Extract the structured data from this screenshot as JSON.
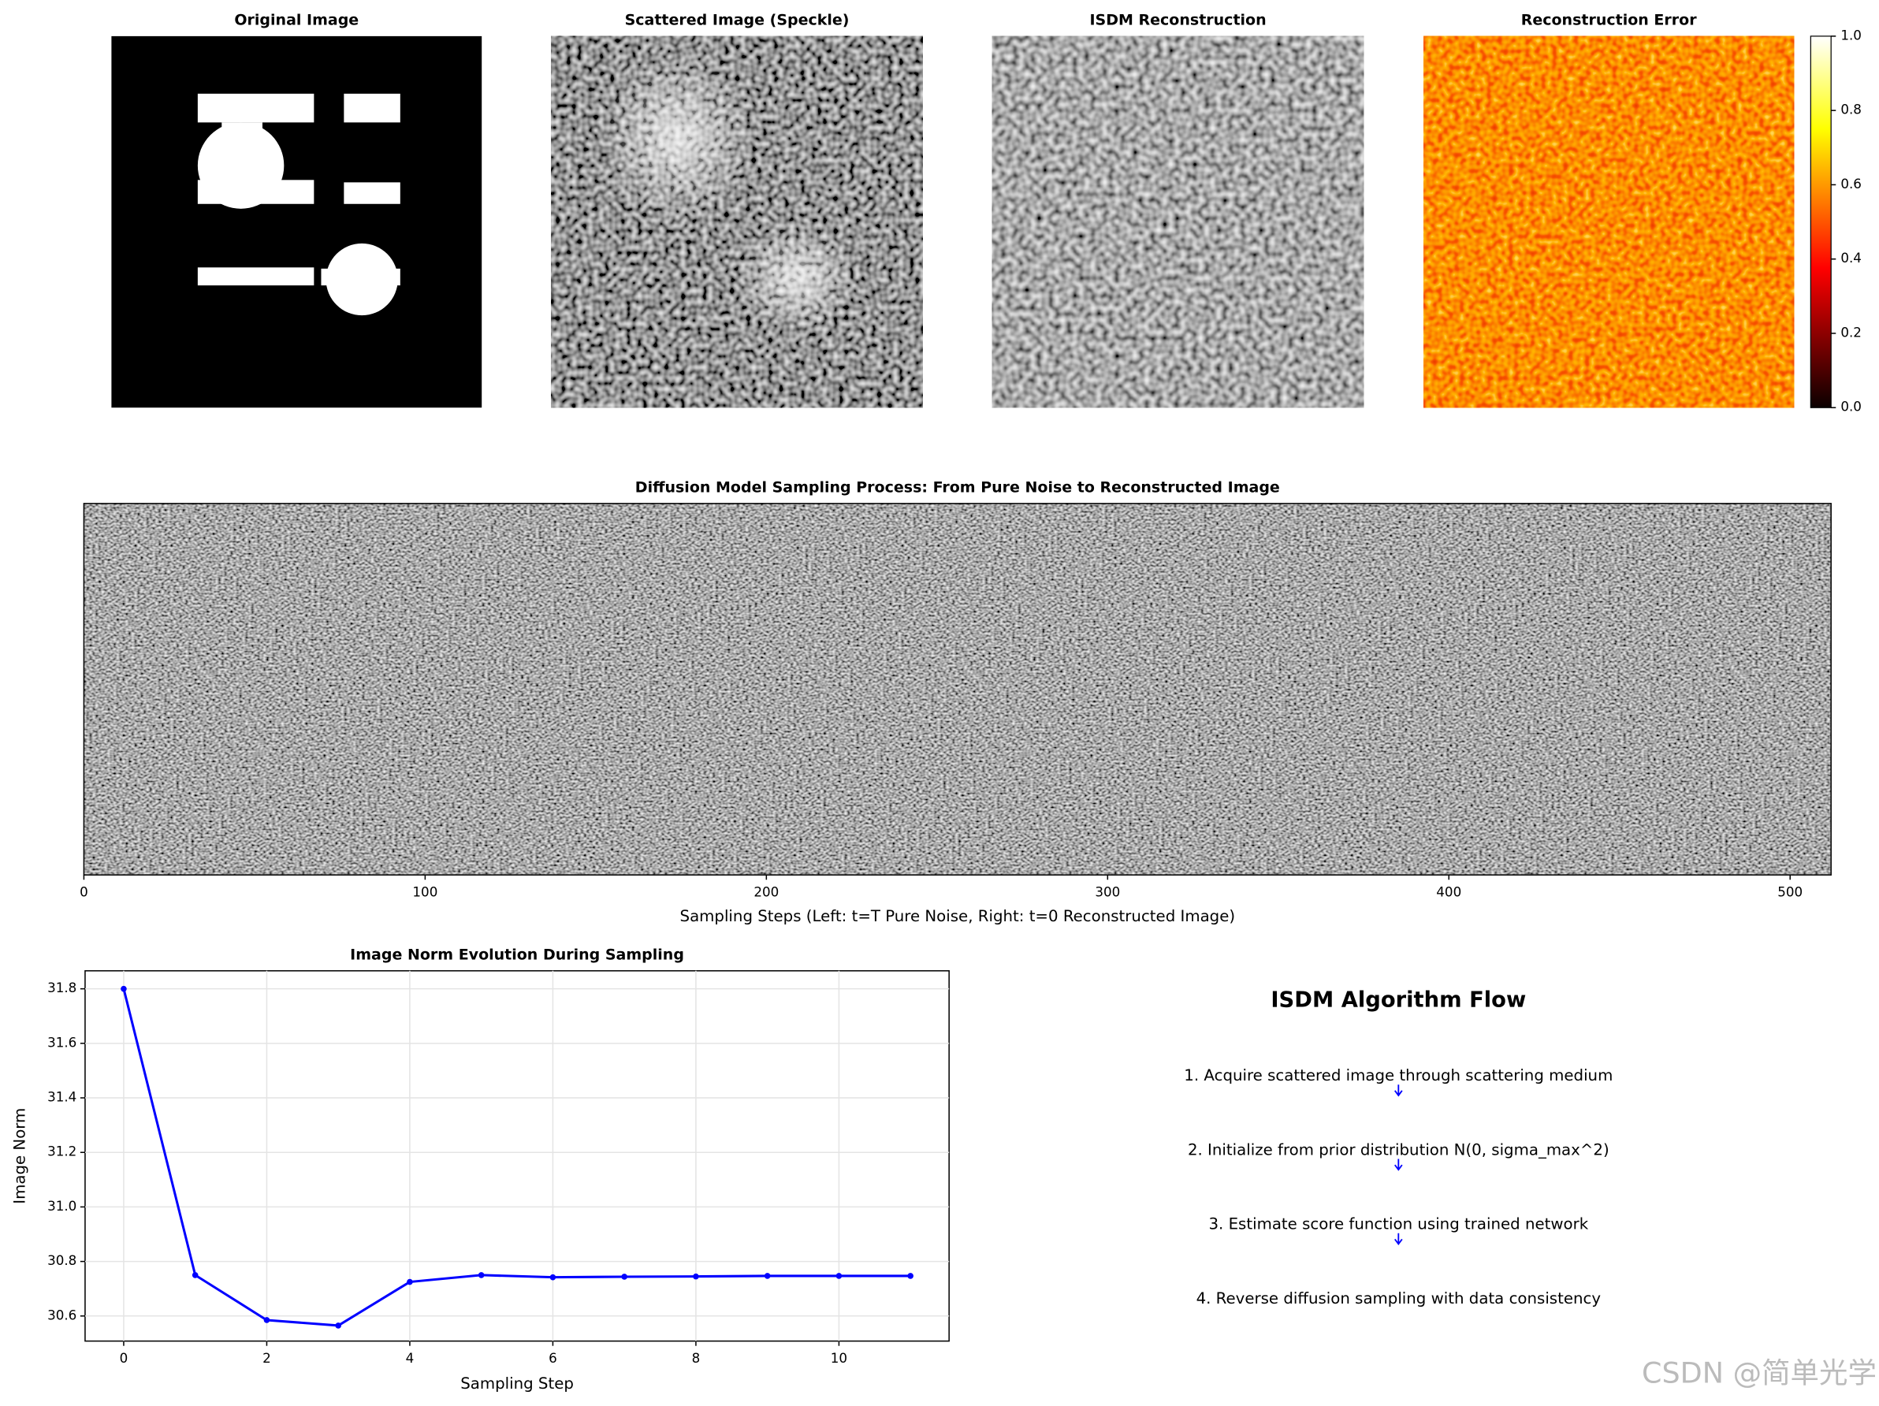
{
  "chart_data": [
    {
      "type": "image",
      "title": "Original Image"
    },
    {
      "type": "image",
      "title": "Scattered Image (Speckle)"
    },
    {
      "type": "image",
      "title": "ISDM Reconstruction"
    },
    {
      "type": "image",
      "title": "Reconstruction Error",
      "colorbar": {
        "lim": [
          0,
          1
        ],
        "ticks": [
          {
            "value": 0,
            "label": "0.0"
          },
          0.2,
          0.4,
          0.6,
          0.8,
          {
            "value": 1,
            "label": "1.0"
          }
        ]
      }
    },
    {
      "type": "image",
      "title": "Diffusion Model Sampling Process: From Pure Noise to Reconstructed Image",
      "xlabel": "Sampling Steps (Left: t=T Pure Noise, Right: t=0 Reconstructed Image)",
      "xlim": [
        0,
        512
      ],
      "xticks": [
        0,
        100,
        200,
        300,
        400,
        500
      ]
    },
    {
      "type": "line",
      "title": "Image Norm Evolution During Sampling",
      "xlabel": "Sampling Step",
      "ylabel": "Image Norm",
      "x": [
        0,
        1,
        2,
        3,
        4,
        5,
        6,
        7,
        8,
        9,
        10,
        11
      ],
      "values": [
        31.8,
        30.75,
        30.585,
        30.565,
        30.725,
        30.75,
        30.742,
        30.744,
        30.745,
        30.747,
        30.747,
        30.747
      ],
      "color": "#0000ff",
      "xlim": [
        -0.54,
        11.54
      ],
      "xticks": [
        0,
        2,
        4,
        6,
        8,
        10
      ],
      "ylim": [
        30.508,
        31.866
      ],
      "yticks": [
        30.6,
        30.8,
        {
          "value": 31.0,
          "label": "31.0"
        },
        31.2,
        31.4,
        31.6,
        31.8
      ],
      "grid": true
    }
  ],
  "flow": {
    "title": "ISDM Algorithm Flow",
    "steps": [
      "1. Acquire scattered image through scattering medium",
      "2. Initialize from prior distribution N(0, sigma_max^2)",
      "3. Estimate score function using trained network",
      "4. Reverse diffusion sampling with data consistency"
    ]
  },
  "watermark": "CSDN @简单光学"
}
